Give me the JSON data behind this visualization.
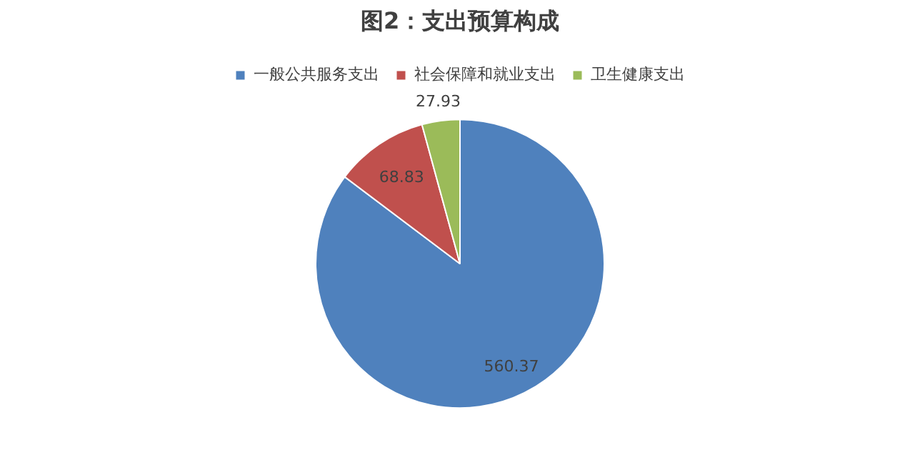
{
  "chart_data": {
    "type": "pie",
    "title": "图2：支出预算构成",
    "categories": [
      "一般公共服务支出",
      "社会保障和就业支出",
      "卫生健康支出"
    ],
    "values": [
      560.37,
      68.83,
      27.93
    ],
    "colors": [
      "#4f81bd",
      "#c0504d",
      "#9bbb59"
    ],
    "data_labels": true,
    "legend": "top"
  }
}
